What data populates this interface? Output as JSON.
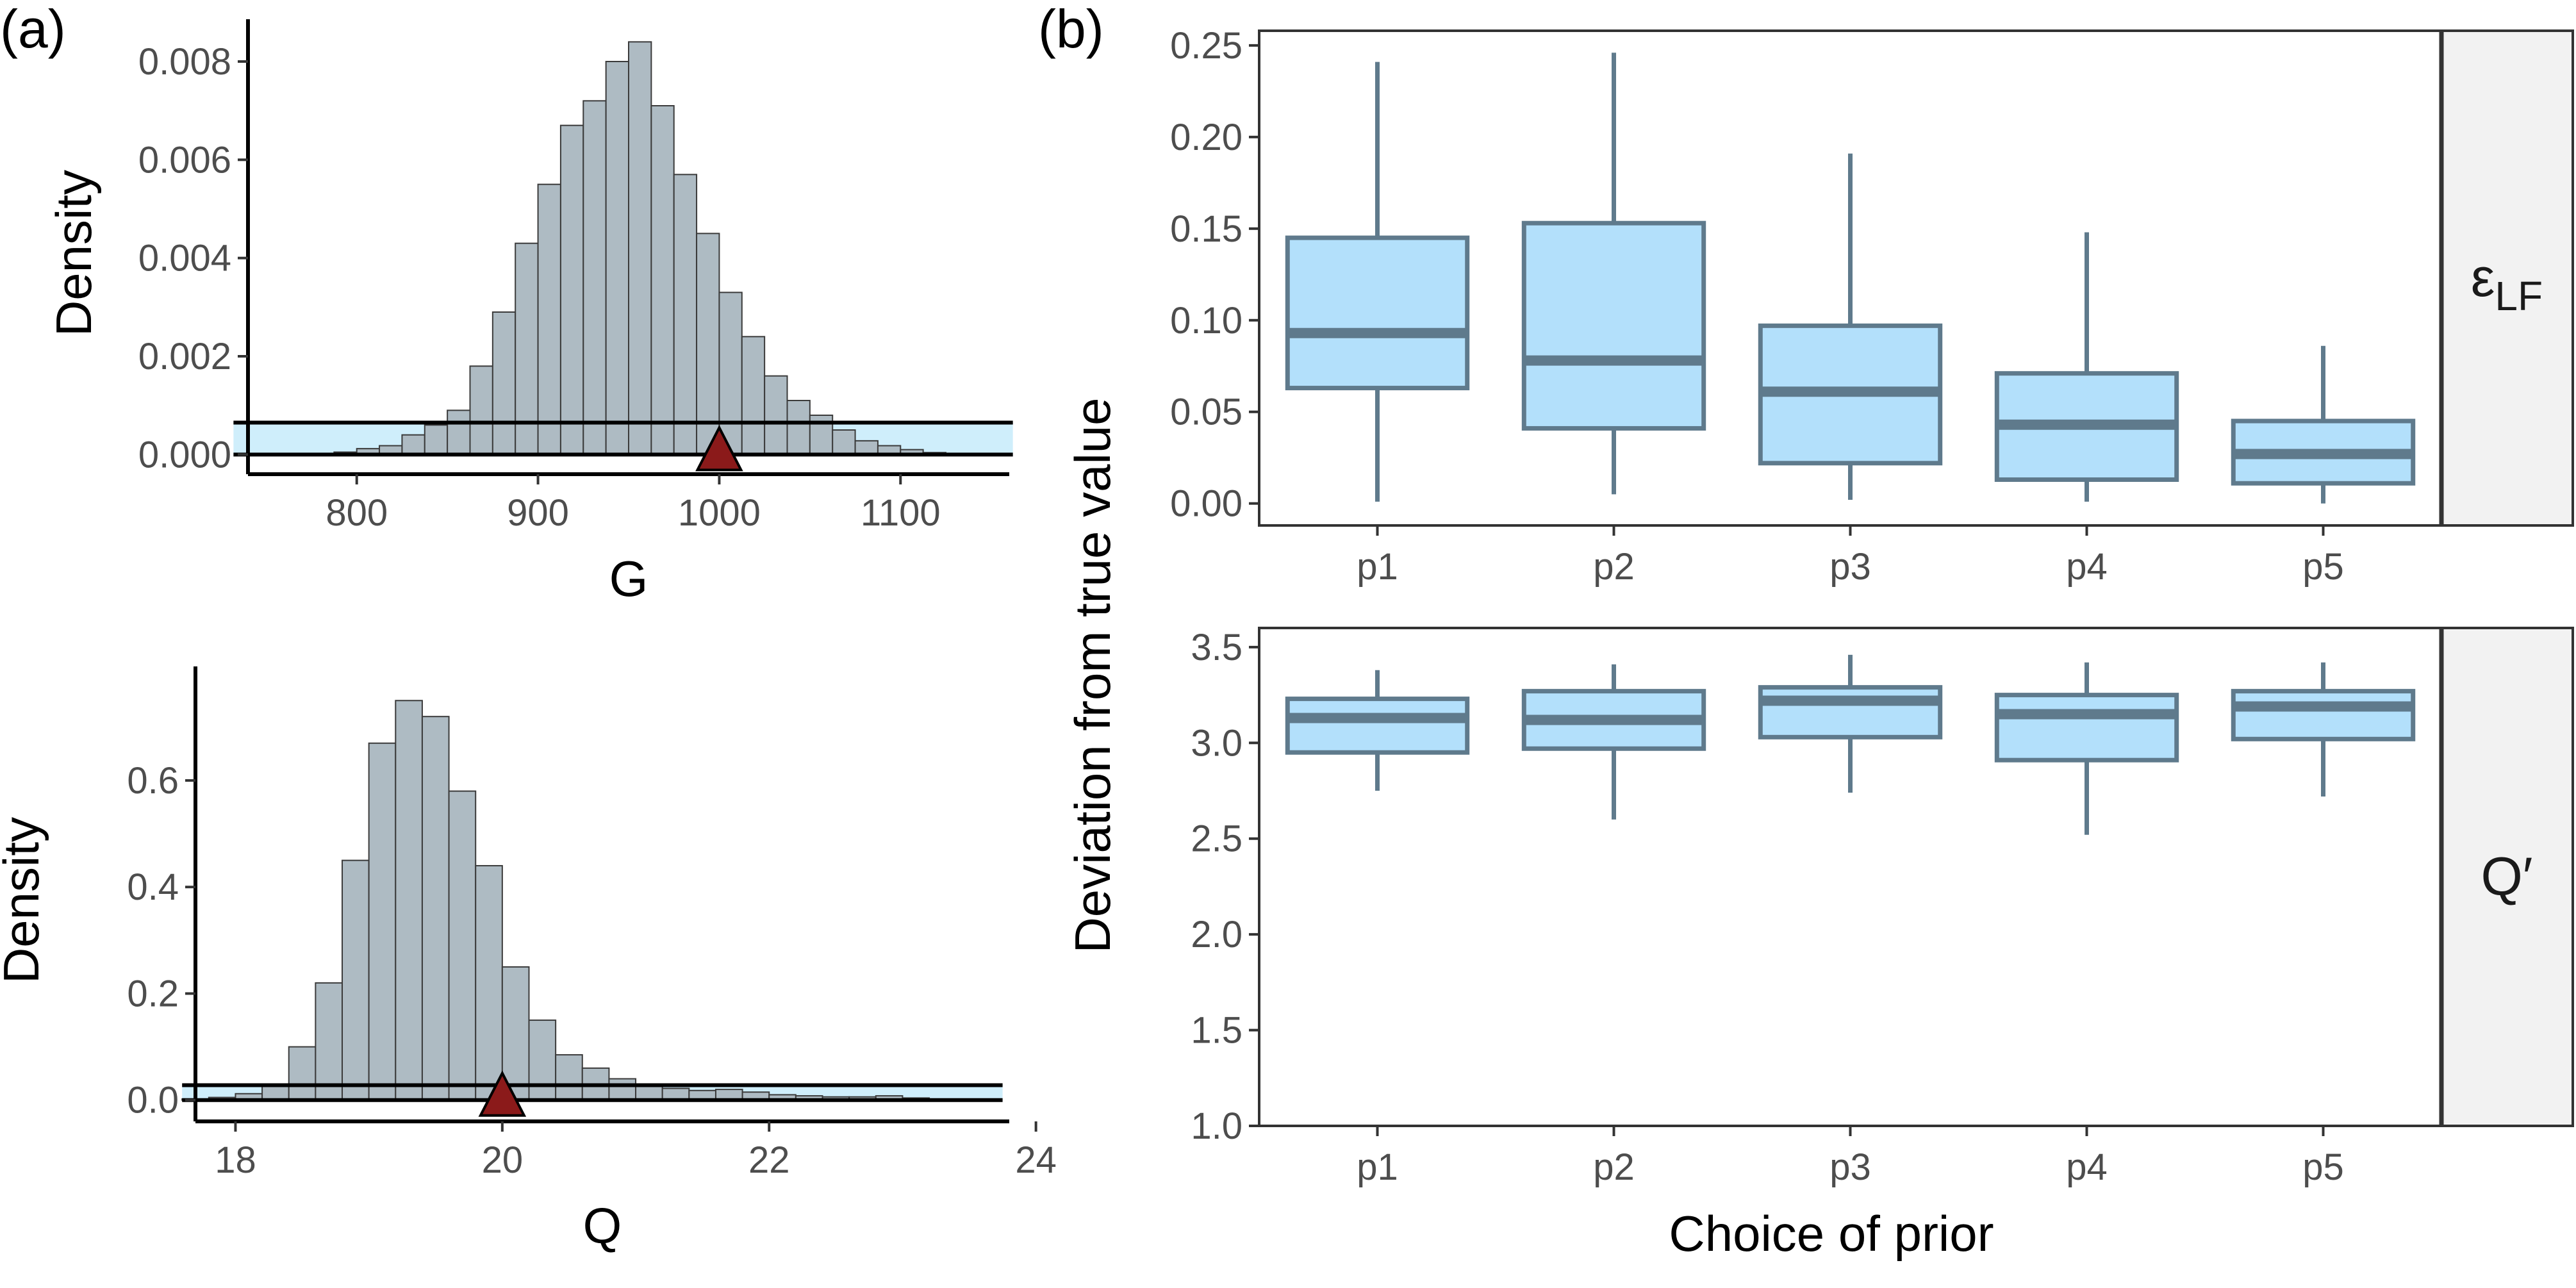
{
  "panel_labels": {
    "a": "(a)",
    "b": "(b)"
  },
  "colors": {
    "hist_fill": "#aebbc3",
    "hist_stroke": "#3b3b3b",
    "band_fill": "#cfeefb",
    "triangle_fill": "#8b1a1a",
    "box_fill": "#b3e0fb",
    "box_stroke": "#5f7a8c",
    "strip_fill": "#f2f2f2",
    "axis": "#000000"
  },
  "chart_data": [
    {
      "type": "histogram",
      "ylabel": "Density",
      "xlabel": "G",
      "xlim": [
        740,
        1160
      ],
      "ylim": [
        -0.0004,
        0.0086
      ],
      "x_ticks": [
        800,
        900,
        1000,
        1100
      ],
      "y_ticks": [
        "0.000",
        "0.002",
        "0.004",
        "0.006",
        "0.008"
      ],
      "y_tick_values": [
        0,
        0.002,
        0.004,
        0.006,
        0.008
      ],
      "bin_width": 12.5,
      "bin_starts": [
        775,
        787.5,
        800,
        812.5,
        825,
        837.5,
        850,
        862.5,
        875,
        887.5,
        900,
        912.5,
        925,
        937.5,
        950,
        962.5,
        975,
        987.5,
        1000,
        1012.5,
        1025,
        1037.5,
        1050,
        1062.5,
        1075,
        1087.5,
        1100,
        1112.5,
        1125,
        1137.5
      ],
      "densities": [
        2e-05,
        5e-05,
        0.00012,
        0.00018,
        0.0004,
        0.0006,
        0.0009,
        0.0018,
        0.0029,
        0.0043,
        0.0055,
        0.0067,
        0.0072,
        0.008,
        0.0084,
        0.0071,
        0.0057,
        0.0045,
        0.0033,
        0.0024,
        0.0016,
        0.0011,
        0.0008,
        0.0005,
        0.00028,
        0.00018,
        0.0001,
        4e-05,
        2e-05,
        1e-05
      ],
      "band": {
        "x_from": 732,
        "x_to": 1162,
        "y_top": 0.00065
      },
      "true_value": 1000
    },
    {
      "type": "histogram",
      "ylabel": "Density",
      "xlabel": "Q",
      "xlim": [
        17.7,
        23.8
      ],
      "ylim": [
        -0.04,
        0.79
      ],
      "x_ticks": [
        18,
        20,
        22,
        24
      ],
      "y_ticks": [
        "0.0",
        "0.2",
        "0.4",
        "0.6"
      ],
      "y_tick_values": [
        0,
        0.2,
        0.4,
        0.6
      ],
      "bin_width": 0.2,
      "bin_starts": [
        17.6,
        17.8,
        18.0,
        18.2,
        18.4,
        18.6,
        18.8,
        19.0,
        19.2,
        19.4,
        19.6,
        19.8,
        20.0,
        20.2,
        20.4,
        20.6,
        20.8,
        21.0,
        21.2,
        21.4,
        21.6,
        21.8,
        22.0,
        22.2,
        22.4,
        22.6,
        22.8,
        23.0,
        23.2,
        23.4
      ],
      "densities": [
        0.002,
        0.005,
        0.012,
        0.03,
        0.1,
        0.22,
        0.45,
        0.67,
        0.75,
        0.72,
        0.58,
        0.44,
        0.25,
        0.15,
        0.085,
        0.06,
        0.04,
        0.03,
        0.022,
        0.018,
        0.02,
        0.015,
        0.01,
        0.008,
        0.006,
        0.006,
        0.008,
        0.004,
        0.002,
        0.001
      ],
      "band": {
        "x_from": 17.6,
        "x_to": 23.75,
        "y_top": 0.028
      },
      "true_value": 20
    },
    {
      "type": "box",
      "strip_label_main": "ε",
      "strip_label_sub": "LF",
      "categories": [
        "p1",
        "p2",
        "p3",
        "p4",
        "p5"
      ],
      "ylim": [
        -0.012,
        0.258
      ],
      "y_ticks": [
        "0.00",
        "0.05",
        "0.10",
        "0.15",
        "0.20",
        "0.25"
      ],
      "y_tick_values": [
        0,
        0.05,
        0.1,
        0.15,
        0.2,
        0.25
      ],
      "boxes": [
        {
          "low": 0.001,
          "q1": 0.063,
          "median": 0.093,
          "q3": 0.145,
          "high": 0.241
        },
        {
          "low": 0.005,
          "q1": 0.041,
          "median": 0.078,
          "q3": 0.153,
          "high": 0.246
        },
        {
          "low": 0.002,
          "q1": 0.022,
          "median": 0.061,
          "q3": 0.097,
          "high": 0.191
        },
        {
          "low": 0.001,
          "q1": 0.013,
          "median": 0.043,
          "q3": 0.071,
          "high": 0.148
        },
        {
          "low": 0.0,
          "q1": 0.011,
          "median": 0.027,
          "q3": 0.045,
          "high": 0.086
        }
      ]
    },
    {
      "type": "box",
      "strip_label_main": "Q′",
      "strip_label_sub": "",
      "categories": [
        "p1",
        "p2",
        "p3",
        "p4",
        "p5"
      ],
      "ylim": [
        1.0,
        3.6
      ],
      "y_ticks": [
        "1.0",
        "1.5",
        "2.0",
        "2.5",
        "3.0",
        "3.5"
      ],
      "y_tick_values": [
        1.0,
        1.5,
        2.0,
        2.5,
        3.0,
        3.5
      ],
      "boxes": [
        {
          "low": 2.75,
          "q1": 2.95,
          "median": 3.13,
          "q3": 3.23,
          "high": 3.38
        },
        {
          "low": 2.6,
          "q1": 2.97,
          "median": 3.12,
          "q3": 3.27,
          "high": 3.41
        },
        {
          "low": 2.74,
          "q1": 3.03,
          "median": 3.22,
          "q3": 3.29,
          "high": 3.46
        },
        {
          "low": 2.52,
          "q1": 2.91,
          "median": 3.15,
          "q3": 3.25,
          "high": 3.42
        },
        {
          "low": 2.72,
          "q1": 3.02,
          "median": 3.19,
          "q3": 3.27,
          "high": 3.42
        }
      ]
    }
  ],
  "facet_axes": {
    "ylabel": "Deviation from true value",
    "xlabel": "Choice of prior"
  }
}
